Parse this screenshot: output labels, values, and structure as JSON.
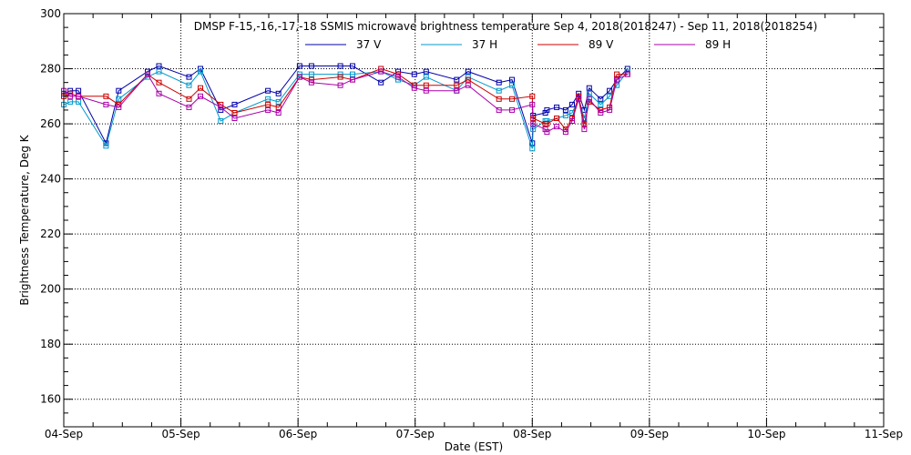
{
  "chart_data": {
    "type": "line",
    "title": "DMSP F-15,-16,-17,-18 SSMIS microwave brightness temperature Sep  4, 2018(2018247) - Sep 11, 2018(2018254)",
    "xlabel": "Date (EST)",
    "ylabel": "Brightness Temperature, Deg K",
    "xlim": [
      "2018-09-04T00:00",
      "2018-09-11T00:00"
    ],
    "ylim": [
      150,
      300
    ],
    "x_tick_labels": [
      "04-Sep",
      "05-Sep",
      "06-Sep",
      "07-Sep",
      "08-Sep",
      "09-Sep",
      "10-Sep",
      "11-Sep"
    ],
    "y_ticks": [
      160,
      180,
      200,
      220,
      240,
      260,
      280,
      300
    ],
    "grid": true,
    "legend_position": "top",
    "x": [
      "2018-09-04T00:20",
      "2018-09-04T03:00",
      "2018-09-04T08:40",
      "2018-09-04T11:15",
      "2018-09-04T17:10",
      "2018-09-04T19:30",
      "2018-09-05T01:40",
      "2018-09-05T04:00",
      "2018-09-05T08:10",
      "2018-09-05T11:00",
      "2018-09-05T17:50",
      "2018-09-05T20:00",
      "2018-09-06T00:20",
      "2018-09-06T02:45",
      "2018-09-06T08:40",
      "2018-09-06T11:10",
      "2018-09-06T17:00",
      "2018-09-06T20:30",
      "2018-09-06T23:50",
      "2018-09-07T02:15",
      "2018-09-07T08:30",
      "2018-09-07T10:50",
      "2018-09-07T17:10",
      "2018-09-07T19:50",
      "2018-09-08T00:10",
      "2018-09-08T02:40",
      "2018-09-08T08:10",
      "2018-09-08T10:40",
      "2018-09-08T17:20",
      "2018-09-08T19:30"
    ],
    "series": [
      {
        "name": "37 V",
        "color": "#0000aa",
        "points": [
          [
            "2018-09-04T00:00",
            271
          ],
          [
            "2018-09-04T01:20",
            272
          ],
          [
            "2018-09-04T03:00",
            272
          ],
          [
            "2018-09-04T08:40",
            253
          ],
          [
            "2018-09-04T11:15",
            272
          ],
          [
            "2018-09-04T17:10",
            279
          ],
          [
            "2018-09-04T19:30",
            281
          ],
          [
            "2018-09-05T01:40",
            277
          ],
          [
            "2018-09-05T04:00",
            280
          ],
          [
            "2018-09-05T08:10",
            265
          ],
          [
            "2018-09-05T11:00",
            267
          ],
          [
            "2018-09-05T17:50",
            272
          ],
          [
            "2018-09-05T20:00",
            271
          ],
          [
            "2018-09-06T00:20",
            281
          ],
          [
            "2018-09-06T02:45",
            281
          ],
          [
            "2018-09-06T08:40",
            281
          ],
          [
            "2018-09-06T11:10",
            281
          ],
          [
            "2018-09-06T17:00",
            275
          ],
          [
            "2018-09-06T20:30",
            279
          ],
          [
            "2018-09-06T23:50",
            278
          ],
          [
            "2018-09-07T02:15",
            279
          ],
          [
            "2018-09-07T08:30",
            276
          ],
          [
            "2018-09-07T10:50",
            279
          ],
          [
            "2018-09-07T17:10",
            275
          ],
          [
            "2018-09-07T19:50",
            276
          ],
          [
            "2018-09-08T00:10",
            263
          ],
          [
            "2018-09-08T02:40",
            264
          ],
          [
            "2018-09-08T08:10",
            267
          ],
          [
            "2018-09-08T10:40",
            265
          ],
          [
            "2018-09-08T17:20",
            276
          ],
          [
            "2018-09-08T19:30",
            280
          ],
          [
            "2018-09-08T00:00",
            253
          ],
          [
            "2018-09-08T03:00",
            265
          ],
          [
            "2018-09-08T05:00",
            266
          ],
          [
            "2018-09-08T06:50",
            265
          ],
          [
            "2018-09-08T09:30",
            271
          ],
          [
            "2018-09-08T11:40",
            273
          ],
          [
            "2018-09-08T14:00",
            269
          ],
          [
            "2018-09-08T15:50",
            272
          ]
        ]
      },
      {
        "name": "37 H",
        "color": "#0099cc",
        "points": [
          [
            "2018-09-04T00:00",
            267
          ],
          [
            "2018-09-04T01:20",
            268
          ],
          [
            "2018-09-04T03:00",
            268
          ],
          [
            "2018-09-04T08:40",
            252
          ],
          [
            "2018-09-04T11:15",
            269
          ],
          [
            "2018-09-04T17:10",
            277
          ],
          [
            "2018-09-04T19:30",
            279
          ],
          [
            "2018-09-05T01:40",
            274
          ],
          [
            "2018-09-05T04:00",
            279
          ],
          [
            "2018-09-05T08:10",
            261
          ],
          [
            "2018-09-05T11:00",
            264
          ],
          [
            "2018-09-05T17:50",
            269
          ],
          [
            "2018-09-05T20:00",
            268
          ],
          [
            "2018-09-06T00:20",
            278
          ],
          [
            "2018-09-06T02:45",
            278
          ],
          [
            "2018-09-06T08:40",
            278
          ],
          [
            "2018-09-06T11:10",
            278
          ],
          [
            "2018-09-06T17:00",
            279
          ],
          [
            "2018-09-06T20:30",
            276
          ],
          [
            "2018-09-06T23:50",
            274
          ],
          [
            "2018-09-07T02:15",
            277
          ],
          [
            "2018-09-07T08:30",
            272
          ],
          [
            "2018-09-07T10:50",
            277
          ],
          [
            "2018-09-07T17:10",
            272
          ],
          [
            "2018-09-07T19:50",
            274
          ],
          [
            "2018-09-08T00:10",
            258
          ],
          [
            "2018-09-08T02:40",
            261
          ],
          [
            "2018-09-08T08:10",
            264
          ],
          [
            "2018-09-08T10:40",
            262
          ],
          [
            "2018-09-08T17:20",
            274
          ],
          [
            "2018-09-08T19:30",
            279
          ],
          [
            "2018-09-08T00:00",
            251
          ],
          [
            "2018-09-08T03:00",
            261
          ],
          [
            "2018-09-08T05:00",
            262
          ],
          [
            "2018-09-08T06:50",
            263
          ],
          [
            "2018-09-08T09:30",
            269
          ],
          [
            "2018-09-08T11:40",
            271
          ],
          [
            "2018-09-08T14:00",
            267
          ],
          [
            "2018-09-08T15:50",
            270
          ]
        ]
      },
      {
        "name": "89 V",
        "color": "#cc0000",
        "points": [
          [
            "2018-09-04T00:00",
            270
          ],
          [
            "2018-09-04T01:20",
            271
          ],
          [
            "2018-09-04T03:00",
            270
          ],
          [
            "2018-09-04T08:40",
            270
          ],
          [
            "2018-09-04T11:15",
            267
          ],
          [
            "2018-09-04T17:10",
            278
          ],
          [
            "2018-09-04T19:30",
            275
          ],
          [
            "2018-09-05T01:40",
            269
          ],
          [
            "2018-09-05T04:00",
            273
          ],
          [
            "2018-09-05T08:10",
            267
          ],
          [
            "2018-09-05T11:00",
            264
          ],
          [
            "2018-09-05T17:50",
            267
          ],
          [
            "2018-09-05T20:00",
            266
          ],
          [
            "2018-09-06T00:20",
            277
          ],
          [
            "2018-09-06T02:45",
            276
          ],
          [
            "2018-09-06T08:40",
            277
          ],
          [
            "2018-09-06T11:10",
            276
          ],
          [
            "2018-09-06T17:00",
            280
          ],
          [
            "2018-09-06T20:30",
            278
          ],
          [
            "2018-09-06T23:50",
            274
          ],
          [
            "2018-09-07T02:15",
            274
          ],
          [
            "2018-09-07T08:30",
            274
          ],
          [
            "2018-09-07T10:50",
            276
          ],
          [
            "2018-09-07T17:10",
            269
          ],
          [
            "2018-09-07T19:50",
            269
          ],
          [
            "2018-09-08T00:10",
            262
          ],
          [
            "2018-09-08T02:40",
            260
          ],
          [
            "2018-09-08T08:10",
            262
          ],
          [
            "2018-09-08T10:40",
            260
          ],
          [
            "2018-09-08T17:20",
            278
          ],
          [
            "2018-09-08T19:30",
            278
          ],
          [
            "2018-09-08T00:00",
            270
          ],
          [
            "2018-09-08T03:00",
            260
          ],
          [
            "2018-09-08T05:00",
            262
          ],
          [
            "2018-09-08T06:50",
            258
          ],
          [
            "2018-09-08T09:30",
            270
          ],
          [
            "2018-09-08T11:40",
            268
          ],
          [
            "2018-09-08T14:00",
            265
          ],
          [
            "2018-09-08T15:50",
            266
          ]
        ]
      },
      {
        "name": "89 H",
        "color": "#aa00aa",
        "points": [
          [
            "2018-09-04T00:00",
            272
          ],
          [
            "2018-09-04T01:20",
            270
          ],
          [
            "2018-09-04T03:00",
            270
          ],
          [
            "2018-09-04T08:40",
            267
          ],
          [
            "2018-09-04T11:15",
            266
          ],
          [
            "2018-09-04T17:10",
            278
          ],
          [
            "2018-09-04T19:30",
            271
          ],
          [
            "2018-09-05T01:40",
            266
          ],
          [
            "2018-09-05T04:00",
            270
          ],
          [
            "2018-09-05T08:10",
            266
          ],
          [
            "2018-09-05T11:00",
            262
          ],
          [
            "2018-09-05T17:50",
            265
          ],
          [
            "2018-09-05T20:00",
            264
          ],
          [
            "2018-09-06T00:20",
            277
          ],
          [
            "2018-09-06T02:45",
            275
          ],
          [
            "2018-09-06T08:40",
            274
          ],
          [
            "2018-09-06T11:10",
            276
          ],
          [
            "2018-09-06T17:00",
            279
          ],
          [
            "2018-09-06T20:30",
            277
          ],
          [
            "2018-09-06T23:50",
            273
          ],
          [
            "2018-09-07T02:15",
            272
          ],
          [
            "2018-09-07T08:30",
            272
          ],
          [
            "2018-09-07T10:50",
            274
          ],
          [
            "2018-09-07T17:10",
            265
          ],
          [
            "2018-09-07T19:50",
            265
          ],
          [
            "2018-09-08T00:10",
            260
          ],
          [
            "2018-09-08T02:40",
            258
          ],
          [
            "2018-09-08T08:10",
            261
          ],
          [
            "2018-09-08T10:40",
            258
          ],
          [
            "2018-09-08T17:20",
            276
          ],
          [
            "2018-09-08T19:30",
            278
          ],
          [
            "2018-09-08T00:00",
            267
          ],
          [
            "2018-09-08T03:00",
            257
          ],
          [
            "2018-09-08T05:00",
            259
          ],
          [
            "2018-09-08T06:50",
            257
          ],
          [
            "2018-09-08T09:30",
            269
          ],
          [
            "2018-09-08T11:40",
            269
          ],
          [
            "2018-09-08T14:00",
            264
          ],
          [
            "2018-09-08T15:50",
            265
          ]
        ]
      }
    ]
  }
}
